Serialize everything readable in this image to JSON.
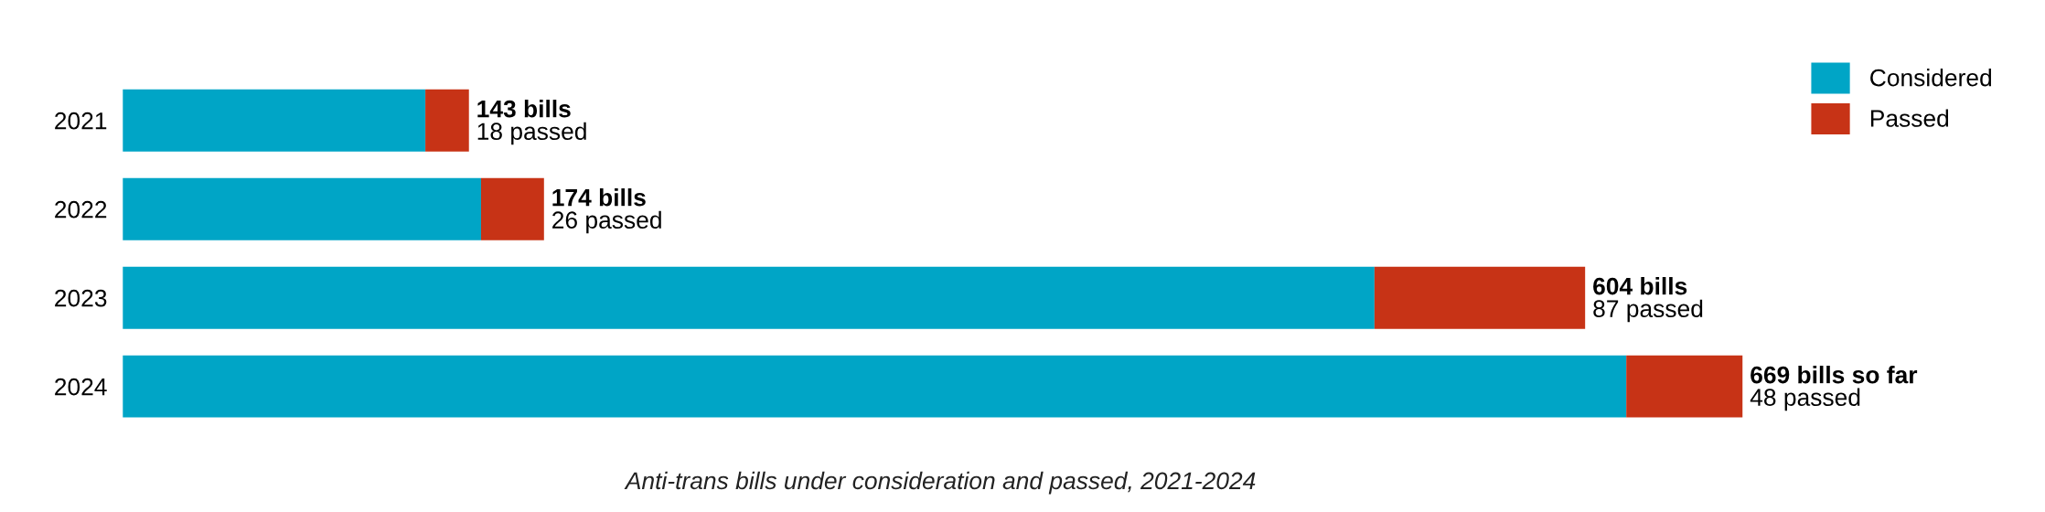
{
  "chart_data": {
    "type": "bar",
    "orientation": "horizontal",
    "stacked": true,
    "categories": [
      "2021",
      "2022",
      "2023",
      "2024"
    ],
    "series": [
      {
        "name": "Considered",
        "color": "#00a5c6",
        "values": [
          125,
          148,
          517,
          621
        ]
      },
      {
        "name": "Passed",
        "color": "#c73316",
        "values": [
          18,
          26,
          87,
          48
        ],
        "value_labels": [
          "18 passed",
          "26 passed",
          "87 passed",
          "48 passed"
        ]
      }
    ],
    "totals": [
      "143 bills",
      "174 bills",
      "604 bills",
      "669 bills so far"
    ],
    "legend": "top right",
    "grid": false,
    "annotations": [
      "Anti-trans bills under consideration and passed, 2021-2024"
    ]
  }
}
